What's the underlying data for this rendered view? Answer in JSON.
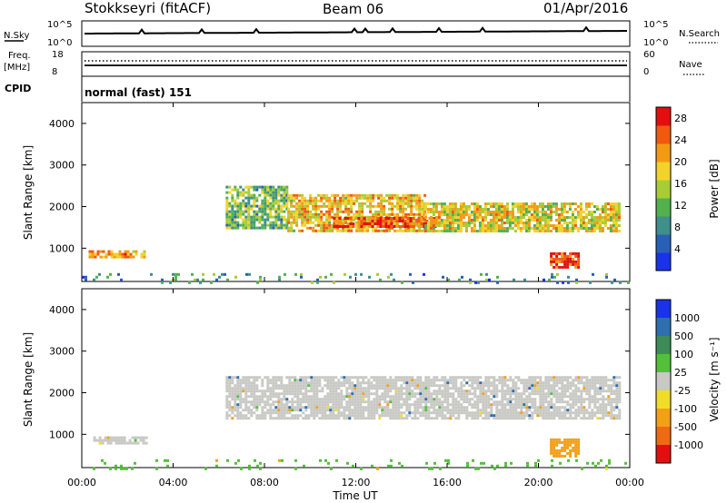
{
  "header": {
    "title": "Stokkseyri (fitACF)",
    "beam": "Beam 06",
    "date": "01/Apr/2016"
  },
  "colors": {
    "power_scale": [
      "#1a33e6",
      "#2a5fb8",
      "#3f8f8a",
      "#52b04f",
      "#a8cc36",
      "#f2d22c",
      "#f29a18",
      "#ef5a12",
      "#e01010"
    ],
    "velocity_scale": [
      "#1a33e6",
      "#2e6fb0",
      "#3d8c57",
      "#53c03a",
      "#c8c8c4",
      "#f0dc2a",
      "#f2a018",
      "#ef6a14",
      "#e01010"
    ],
    "ground_scatter": "#c8c8c4"
  },
  "top_panels": {
    "nsky_label": "N.Sky",
    "nsky_ticks": [
      "10^5",
      "10^0"
    ],
    "nsearch_label": "N.Search",
    "nsearch_ticks": [
      "10^5",
      "10^0"
    ],
    "freq_label": "Freq.",
    "freq_unit": "[MHz]",
    "freq_ticks": [
      "18",
      "8"
    ],
    "nave_label": "Nave",
    "nave_ticks": [
      "60",
      "0"
    ],
    "cpid_label": "CPID",
    "cpid_text": "normal (fast) 151"
  },
  "chart_data": [
    {
      "type": "heatmap",
      "panel": "power",
      "ylabel": "Slant Range [km]",
      "xlabel": "",
      "x_ticks": [
        "00:00",
        "04:00",
        "08:00",
        "12:00",
        "16:00",
        "20:00",
        "00:00"
      ],
      "y_ticks": [
        "1000",
        "2000",
        "3000",
        "4000"
      ],
      "ylim": [
        200,
        4500
      ],
      "colorbar_label": "Power [dB]",
      "colorbar_ticks": [
        "28",
        "24",
        "20",
        "16",
        "12",
        "8",
        "4"
      ],
      "colorbar_range": [
        0,
        30
      ],
      "regions": [
        {
          "t_start": 0.3,
          "t_end": 2.8,
          "r_low": 800,
          "r_high": 950,
          "level": 22
        },
        {
          "t_start": 6.3,
          "t_end": 9.0,
          "r_low": 1500,
          "r_high": 2500,
          "level": 12
        },
        {
          "t_start": 9.0,
          "t_end": 15.0,
          "r_low": 1400,
          "r_high": 2300,
          "level": 20
        },
        {
          "t_start": 11.0,
          "t_end": 15.5,
          "r_low": 1550,
          "r_high": 1750,
          "level": 28
        },
        {
          "t_start": 15.0,
          "t_end": 23.5,
          "r_low": 1400,
          "r_high": 2100,
          "level": 18
        },
        {
          "t_start": 20.5,
          "t_end": 21.8,
          "r_low": 550,
          "r_high": 900,
          "level": 28
        },
        {
          "t_start": 0.0,
          "t_end": 24.0,
          "r_low": 200,
          "r_high": 400,
          "level": 8
        }
      ]
    },
    {
      "type": "heatmap",
      "panel": "velocity",
      "ylabel": "Slant Range [km]",
      "xlabel": "Time UT",
      "x_ticks": [
        "00:00",
        "04:00",
        "08:00",
        "12:00",
        "16:00",
        "20:00",
        "00:00"
      ],
      "y_ticks": [
        "1000",
        "2000",
        "3000",
        "4000"
      ],
      "ylim": [
        200,
        4500
      ],
      "colorbar_label": "Velocity [m s⁻¹]",
      "colorbar_ticks": [
        "1000",
        "500",
        "100",
        "25",
        "-25",
        "-100",
        "-500",
        "-1000"
      ],
      "regions": [
        {
          "t_start": 0.5,
          "t_end": 2.8,
          "r_low": 800,
          "r_high": 950,
          "velocity": 0
        },
        {
          "t_start": 6.3,
          "t_end": 23.5,
          "r_low": 1400,
          "r_high": 2400,
          "velocity": 0
        },
        {
          "t_start": 20.5,
          "t_end": 21.8,
          "r_low": 500,
          "r_high": 900,
          "velocity": -300
        },
        {
          "t_start": 0.0,
          "t_end": 24.0,
          "r_low": 200,
          "r_high": 400,
          "velocity": 50
        }
      ]
    }
  ]
}
